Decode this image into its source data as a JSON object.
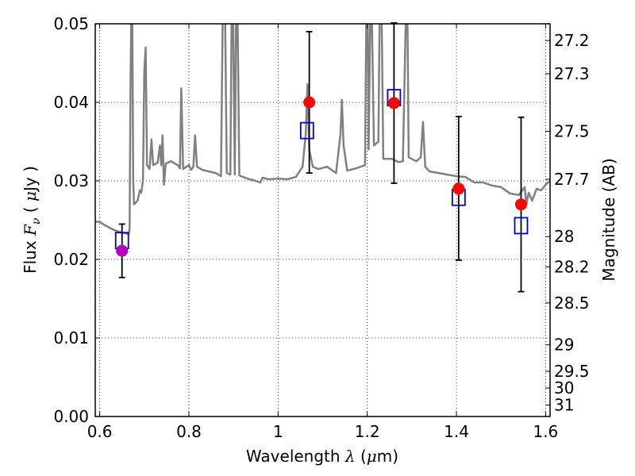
{
  "chart_data": {
    "type": "scatter",
    "xlabel": {
      "prefix": "Wavelength ",
      "symbol": "λ",
      "unit_open": " (",
      "unit_sym": "μ",
      "unit_close": "m)"
    },
    "ylabel": {
      "prefix": "Flux ",
      "symbol": "F",
      "subscript": "ν",
      "unit_open": " ( ",
      "unit_sym": "μ",
      "unit_close": "Jy )"
    },
    "y2label": "Magnitude (AB)",
    "xlim": [
      0.59,
      1.61
    ],
    "ylim": [
      0.0,
      0.05
    ],
    "grid": true,
    "x_ticks": [
      {
        "value": 0.6,
        "label": "0.6"
      },
      {
        "value": 0.8,
        "label": "0.8"
      },
      {
        "value": 1.0,
        "label": "1"
      },
      {
        "value": 1.2,
        "label": "1.2"
      },
      {
        "value": 1.4,
        "label": "1.4"
      },
      {
        "value": 1.6,
        "label": "1.6"
      }
    ],
    "y_ticks": [
      {
        "value": 0.0,
        "label": "0.00"
      },
      {
        "value": 0.01,
        "label": "0.01"
      },
      {
        "value": 0.02,
        "label": "0.02"
      },
      {
        "value": 0.03,
        "label": "0.03"
      },
      {
        "value": 0.04,
        "label": "0.04"
      },
      {
        "value": 0.05,
        "label": "0.05"
      }
    ],
    "mag_ticks": [
      {
        "value": 27.2,
        "label": "27.2"
      },
      {
        "value": 27.3,
        "label": "27.3"
      },
      {
        "value": 27.5,
        "label": "27.5"
      },
      {
        "value": 27.7,
        "label": "27.7"
      },
      {
        "value": 28.0,
        "label": "28"
      },
      {
        "value": 28.2,
        "label": "28.2"
      },
      {
        "value": 28.5,
        "label": "28.5"
      },
      {
        "value": 29.0,
        "label": "29"
      },
      {
        "value": 29.5,
        "label": "29.5"
      },
      {
        "value": 30.0,
        "label": "30"
      },
      {
        "value": 31.0,
        "label": "31"
      }
    ],
    "model_spectrum": {
      "color": "#808080",
      "points": [
        [
          0.59,
          0.0248
        ],
        [
          0.6,
          0.0248
        ],
        [
          0.61,
          0.0244
        ],
        [
          0.62,
          0.0241
        ],
        [
          0.63,
          0.0238
        ],
        [
          0.64,
          0.0236
        ],
        [
          0.65,
          0.0234
        ],
        [
          0.66,
          0.0233
        ],
        [
          0.665,
          0.0232
        ],
        [
          0.667,
          0.024
        ],
        [
          0.669,
          0.042
        ],
        [
          0.671,
          0.052
        ],
        [
          0.673,
          0.052
        ],
        [
          0.675,
          0.03
        ],
        [
          0.677,
          0.027
        ],
        [
          0.685,
          0.0275
        ],
        [
          0.69,
          0.0288
        ],
        [
          0.693,
          0.0285
        ],
        [
          0.697,
          0.03
        ],
        [
          0.7,
          0.044
        ],
        [
          0.703,
          0.047
        ],
        [
          0.706,
          0.032
        ],
        [
          0.712,
          0.0315
        ],
        [
          0.716,
          0.0353
        ],
        [
          0.72,
          0.032
        ],
        [
          0.73,
          0.0323
        ],
        [
          0.735,
          0.0345
        ],
        [
          0.738,
          0.032
        ],
        [
          0.741,
          0.0358
        ],
        [
          0.744,
          0.0295
        ],
        [
          0.748,
          0.0322
        ],
        [
          0.76,
          0.0325
        ],
        [
          0.775,
          0.032
        ],
        [
          0.78,
          0.0316
        ],
        [
          0.783,
          0.0418
        ],
        [
          0.787,
          0.0315
        ],
        [
          0.8,
          0.032
        ],
        [
          0.805,
          0.0314
        ],
        [
          0.81,
          0.0318
        ],
        [
          0.814,
          0.0358
        ],
        [
          0.818,
          0.0318
        ],
        [
          0.83,
          0.0314
        ],
        [
          0.845,
          0.0312
        ],
        [
          0.86,
          0.031
        ],
        [
          0.872,
          0.0306
        ],
        [
          0.876,
          0.052
        ],
        [
          0.881,
          0.052
        ],
        [
          0.885,
          0.031
        ],
        [
          0.893,
          0.0308
        ],
        [
          0.896,
          0.052
        ],
        [
          0.899,
          0.052
        ],
        [
          0.903,
          0.0308
        ],
        [
          0.906,
          0.052
        ],
        [
          0.909,
          0.052
        ],
        [
          0.913,
          0.0307
        ],
        [
          0.93,
          0.0303
        ],
        [
          0.95,
          0.03
        ],
        [
          0.96,
          0.0298
        ],
        [
          0.965,
          0.0304
        ],
        [
          0.98,
          0.0302
        ],
        [
          1.0,
          0.0303
        ],
        [
          1.02,
          0.0302
        ],
        [
          1.04,
          0.0305
        ],
        [
          1.055,
          0.0318
        ],
        [
          1.062,
          0.036
        ],
        [
          1.066,
          0.0423
        ],
        [
          1.07,
          0.034
        ],
        [
          1.078,
          0.0318
        ],
        [
          1.09,
          0.0315
        ],
        [
          1.11,
          0.0318
        ],
        [
          1.13,
          0.031
        ],
        [
          1.14,
          0.036
        ],
        [
          1.143,
          0.0403
        ],
        [
          1.147,
          0.0345
        ],
        [
          1.155,
          0.0313
        ],
        [
          1.175,
          0.0316
        ],
        [
          1.195,
          0.032
        ],
        [
          1.198,
          0.052
        ],
        [
          1.201,
          0.052
        ],
        [
          1.203,
          0.034
        ],
        [
          1.207,
          0.052
        ],
        [
          1.21,
          0.052
        ],
        [
          1.215,
          0.0345
        ],
        [
          1.225,
          0.035
        ],
        [
          1.228,
          0.052
        ],
        [
          1.232,
          0.052
        ],
        [
          1.236,
          0.0328
        ],
        [
          1.255,
          0.0328
        ],
        [
          1.27,
          0.0324
        ],
        [
          1.28,
          0.0325
        ],
        [
          1.287,
          0.052
        ],
        [
          1.29,
          0.052
        ],
        [
          1.293,
          0.033
        ],
        [
          1.31,
          0.0325
        ],
        [
          1.32,
          0.033
        ],
        [
          1.325,
          0.0375
        ],
        [
          1.33,
          0.0318
        ],
        [
          1.34,
          0.0312
        ],
        [
          1.36,
          0.031
        ],
        [
          1.38,
          0.0308
        ],
        [
          1.4,
          0.0306
        ],
        [
          1.42,
          0.0305
        ],
        [
          1.44,
          0.0298
        ],
        [
          1.46,
          0.0298
        ],
        [
          1.48,
          0.0294
        ],
        [
          1.5,
          0.0292
        ],
        [
          1.52,
          0.0284
        ],
        [
          1.54,
          0.0282
        ],
        [
          1.553,
          0.0292
        ],
        [
          1.557,
          0.027
        ],
        [
          1.562,
          0.0285
        ],
        [
          1.57,
          0.0275
        ],
        [
          1.58,
          0.029
        ],
        [
          1.59,
          0.0288
        ],
        [
          1.6,
          0.0295
        ],
        [
          1.61,
          0.03
        ]
      ]
    },
    "observed": {
      "color": "#ff0000",
      "points": [
        {
          "x": 0.65,
          "y": 0.0211,
          "yerr_low": 0.0177,
          "yerr_high": 0.0245,
          "color": "#b000c0"
        },
        {
          "x": 1.07,
          "y": 0.04,
          "yerr_low": 0.031,
          "yerr_high": 0.049,
          "color": "#ff0000"
        },
        {
          "x": 1.26,
          "y": 0.0399,
          "yerr_low": 0.0297,
          "yerr_high": 0.0501,
          "color": "#ff0000"
        },
        {
          "x": 1.405,
          "y": 0.029,
          "yerr_low": 0.0199,
          "yerr_high": 0.0382,
          "color": "#ff0000"
        },
        {
          "x": 1.545,
          "y": 0.027,
          "yerr_low": 0.0159,
          "yerr_high": 0.0381,
          "color": "#ff0000"
        }
      ]
    },
    "model_photometry": {
      "color": "#0000cc",
      "points": [
        {
          "x": 0.65,
          "y": 0.0224
        },
        {
          "x": 1.065,
          "y": 0.0364
        },
        {
          "x": 1.26,
          "y": 0.0406
        },
        {
          "x": 1.405,
          "y": 0.0279
        },
        {
          "x": 1.545,
          "y": 0.0243
        }
      ]
    }
  }
}
